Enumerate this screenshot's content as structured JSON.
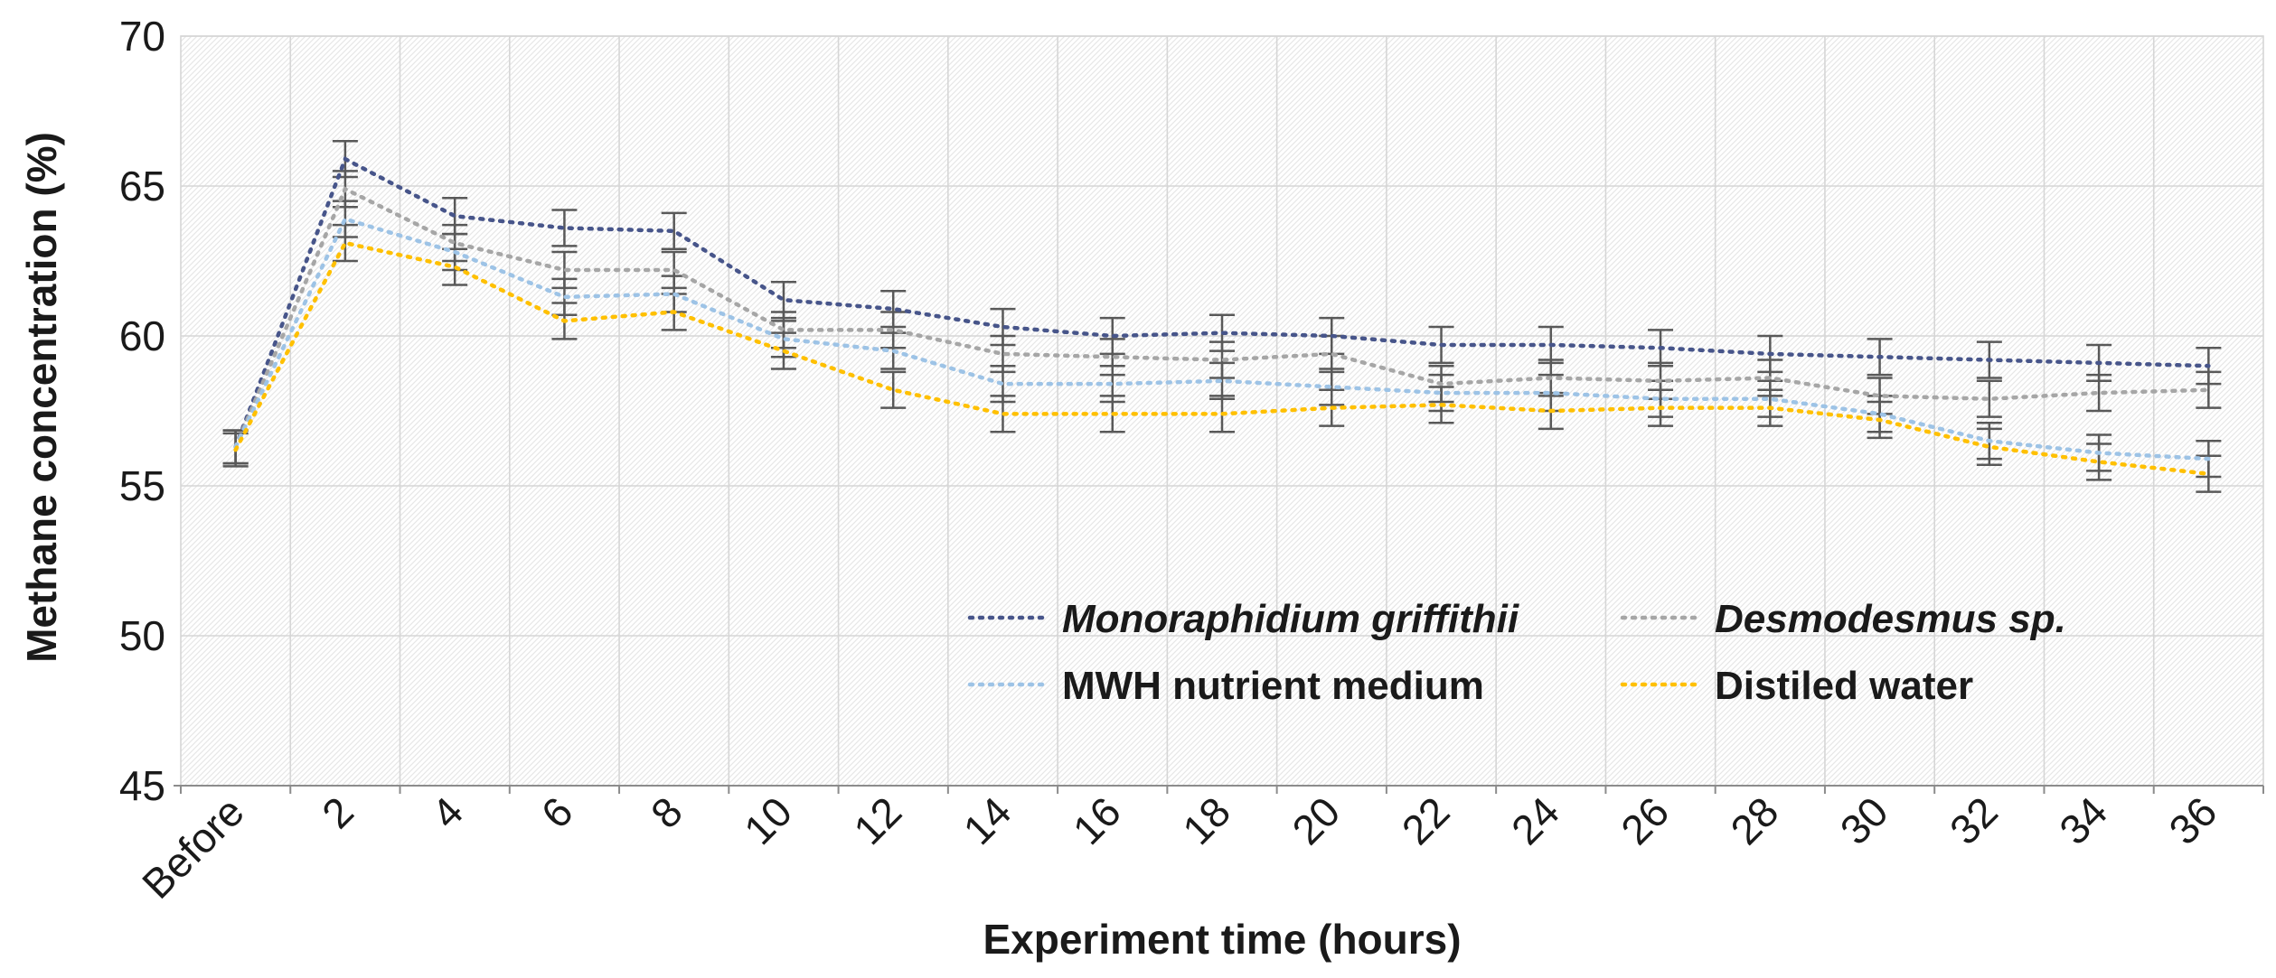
{
  "chart": {
    "y_axis_title": "Methane concentration (%)",
    "x_axis_title": "Experiment time (hours)"
  },
  "chart_data": {
    "type": "line",
    "title": "",
    "xlabel": "Experiment time (hours)",
    "ylabel": "Methane concentration (%)",
    "ylim": [
      45,
      70
    ],
    "y_ticks": [
      70,
      65,
      60,
      55,
      50,
      45
    ],
    "grid": true,
    "plot_background": "diagonal-hatch",
    "legend_position": "inside-lower-center, 2 columns",
    "line_style": "dotted with error bars",
    "colors": {
      "gridline": "#D6D6D6",
      "hatch": "#E7E7E7",
      "axis_line": "#8C8C8C",
      "error_bar": "#595959",
      "text": "#1a1a1a"
    },
    "categories": [
      "Before",
      "2",
      "4",
      "6",
      "8",
      "10",
      "12",
      "14",
      "16",
      "18",
      "20",
      "22",
      "24",
      "26",
      "28",
      "30",
      "32",
      "34",
      "36"
    ],
    "series": [
      {
        "name": "Monoraphidium griffithii",
        "italic": true,
        "color": "#47558A",
        "values": [
          56.3,
          65.9,
          64.0,
          63.6,
          63.5,
          61.2,
          60.9,
          60.3,
          60.0,
          60.1,
          60.0,
          59.7,
          59.7,
          59.6,
          59.4,
          59.3,
          59.2,
          59.1,
          59.0
        ],
        "errors": [
          0.55,
          0.6,
          0.6,
          0.6,
          0.6,
          0.6,
          0.6,
          0.6,
          0.6,
          0.6,
          0.6,
          0.6,
          0.6,
          0.6,
          0.6,
          0.6,
          0.6,
          0.6,
          0.6
        ]
      },
      {
        "name": "Desmodesmus sp.",
        "italic": true,
        "color": "#A6A6A6",
        "values": [
          56.3,
          64.9,
          63.1,
          62.2,
          62.2,
          60.2,
          60.2,
          59.4,
          59.3,
          59.2,
          59.4,
          58.4,
          58.6,
          58.5,
          58.6,
          58.0,
          57.9,
          58.1,
          58.2
        ],
        "errors": [
          0.55,
          0.6,
          0.6,
          0.6,
          0.6,
          0.6,
          0.6,
          0.6,
          0.6,
          0.6,
          0.6,
          0.6,
          0.6,
          0.6,
          0.6,
          0.6,
          0.6,
          0.6,
          0.6
        ]
      },
      {
        "name": "MWH nutrient medium",
        "italic": false,
        "color": "#9DC3E6",
        "values": [
          56.3,
          63.9,
          62.8,
          61.3,
          61.4,
          59.9,
          59.5,
          58.4,
          58.4,
          58.5,
          58.3,
          58.1,
          58.1,
          57.9,
          57.9,
          57.4,
          56.5,
          56.1,
          55.9
        ],
        "errors": [
          0.55,
          0.6,
          0.6,
          0.6,
          0.6,
          0.6,
          0.6,
          0.6,
          0.6,
          0.6,
          0.6,
          0.6,
          0.6,
          0.6,
          0.6,
          0.6,
          0.6,
          0.6,
          0.6
        ]
      },
      {
        "name": "Distiled water",
        "italic": false,
        "color": "#FFC000",
        "values": [
          56.2,
          63.1,
          62.3,
          60.5,
          60.8,
          59.5,
          58.2,
          57.4,
          57.4,
          57.4,
          57.6,
          57.7,
          57.5,
          57.6,
          57.6,
          57.2,
          56.3,
          55.8,
          55.4
        ],
        "errors": [
          0.55,
          0.6,
          0.6,
          0.6,
          0.6,
          0.6,
          0.6,
          0.6,
          0.6,
          0.6,
          0.6,
          0.6,
          0.6,
          0.6,
          0.6,
          0.6,
          0.6,
          0.6,
          0.6
        ]
      }
    ]
  }
}
